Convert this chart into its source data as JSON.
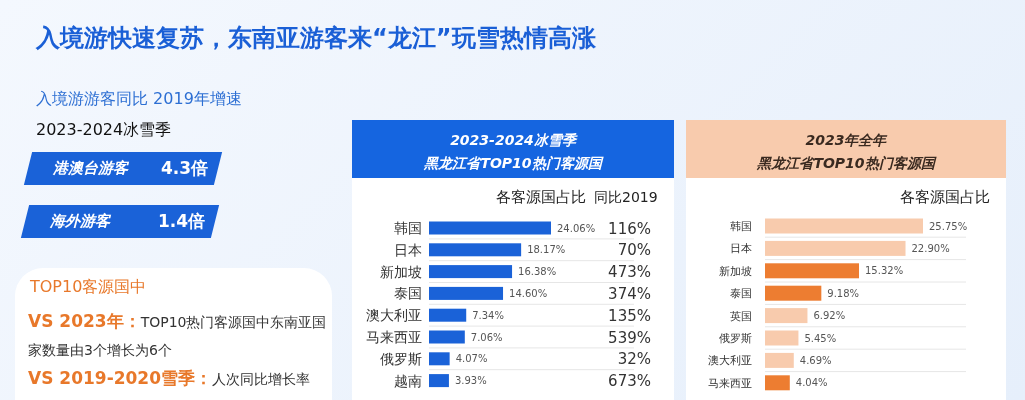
{
  "chart_data": [
    {
      "type": "other",
      "title": "入境游快速复苏，东南亚游客来“龙江”玩雪热情高涨",
      "subtitle": "入境游游客同比 2019年增速",
      "annotations": [
        "2023-2024冰雪季",
        "港澳台游客",
        "4.3倍",
        "海外游客",
        "1.4倍",
        "TOP10客源国中",
        "VS 2023年：",
        "TOP10热门客源国中东南亚国家数量由3个增长为6个",
        "VS 2019-2020雪季：",
        "人次同比增长率"
      ]
    },
    {
      "type": "bar",
      "orientation": "horizontal",
      "title": "2023-2024冰雪季",
      "subtitle": "黑龙江省TOP10热门客源国",
      "xlabel": "各客源国占比",
      "categories": [
        "韩国",
        "日本",
        "新加坡",
        "泰国",
        "澳大利亚",
        "马来西亚",
        "俄罗斯",
        "越南"
      ],
      "values": [
        24.06,
        18.17,
        16.38,
        14.6,
        7.34,
        7.06,
        4.07,
        3.93
      ],
      "colors": [
        "#1a62d8",
        "#1a62d8",
        "#1a62d8",
        "#1a62d8",
        "#1a62d8",
        "#1a62d8",
        "#1a62d8",
        "#1a62d8"
      ],
      "value_labels": [
        "24.06%",
        "18.17%",
        "16.38%",
        "14.60%",
        "7.34%",
        "7.06%",
        "4.07%",
        "3.93%"
      ],
      "annotations": [
        "同比2019",
        "116%",
        "70%",
        "473%",
        "374%",
        "135%",
        "539%",
        "32%",
        "673%"
      ]
    },
    {
      "type": "bar",
      "orientation": "horizontal",
      "title": "2023年全年",
      "subtitle": "黑龙江省TOP10热门客源国",
      "xlabel": "各客源国占比",
      "categories": [
        "韩国",
        "日本",
        "新加坡",
        "泰国",
        "英国",
        "俄罗斯",
        "澳大利亚",
        "马来西亚"
      ],
      "values": [
        25.75,
        22.9,
        15.32,
        9.18,
        6.92,
        5.45,
        4.69,
        4.04
      ],
      "colors": [
        "#f8cbad",
        "#f8cbad",
        "#ed7d31",
        "#ed7d31",
        "#f8cbad",
        "#f8cbad",
        "#f8cbad",
        "#ed7d31"
      ],
      "value_labels": [
        "25.75%",
        "22.90%",
        "15.32%",
        "9.18%",
        "6.92%",
        "5.45%",
        "4.69%",
        "4.04%"
      ]
    }
  ]
}
